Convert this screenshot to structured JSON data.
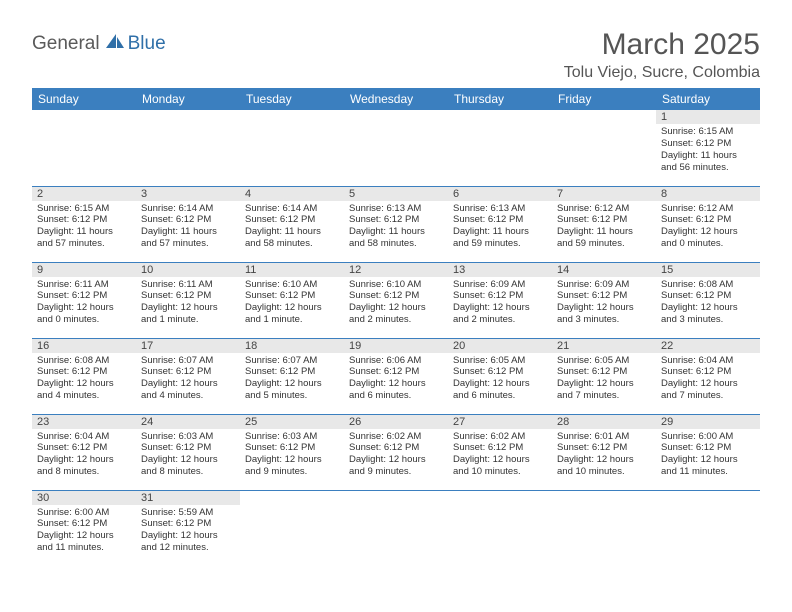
{
  "logo": {
    "general": "General",
    "blue": "Blue"
  },
  "title": "March 2025",
  "location": "Tolu Viejo, Sucre, Colombia",
  "header_bg": "#3b7fbf",
  "days_of_week": [
    "Sunday",
    "Monday",
    "Tuesday",
    "Wednesday",
    "Thursday",
    "Friday",
    "Saturday"
  ],
  "weeks": [
    [
      {
        "n": "",
        "sunrise": "",
        "sunset": "",
        "daylight": ""
      },
      {
        "n": "",
        "sunrise": "",
        "sunset": "",
        "daylight": ""
      },
      {
        "n": "",
        "sunrise": "",
        "sunset": "",
        "daylight": ""
      },
      {
        "n": "",
        "sunrise": "",
        "sunset": "",
        "daylight": ""
      },
      {
        "n": "",
        "sunrise": "",
        "sunset": "",
        "daylight": ""
      },
      {
        "n": "",
        "sunrise": "",
        "sunset": "",
        "daylight": ""
      },
      {
        "n": "1",
        "sunrise": "Sunrise: 6:15 AM",
        "sunset": "Sunset: 6:12 PM",
        "daylight": "Daylight: 11 hours and 56 minutes."
      }
    ],
    [
      {
        "n": "2",
        "sunrise": "Sunrise: 6:15 AM",
        "sunset": "Sunset: 6:12 PM",
        "daylight": "Daylight: 11 hours and 57 minutes."
      },
      {
        "n": "3",
        "sunrise": "Sunrise: 6:14 AM",
        "sunset": "Sunset: 6:12 PM",
        "daylight": "Daylight: 11 hours and 57 minutes."
      },
      {
        "n": "4",
        "sunrise": "Sunrise: 6:14 AM",
        "sunset": "Sunset: 6:12 PM",
        "daylight": "Daylight: 11 hours and 58 minutes."
      },
      {
        "n": "5",
        "sunrise": "Sunrise: 6:13 AM",
        "sunset": "Sunset: 6:12 PM",
        "daylight": "Daylight: 11 hours and 58 minutes."
      },
      {
        "n": "6",
        "sunrise": "Sunrise: 6:13 AM",
        "sunset": "Sunset: 6:12 PM",
        "daylight": "Daylight: 11 hours and 59 minutes."
      },
      {
        "n": "7",
        "sunrise": "Sunrise: 6:12 AM",
        "sunset": "Sunset: 6:12 PM",
        "daylight": "Daylight: 11 hours and 59 minutes."
      },
      {
        "n": "8",
        "sunrise": "Sunrise: 6:12 AM",
        "sunset": "Sunset: 6:12 PM",
        "daylight": "Daylight: 12 hours and 0 minutes."
      }
    ],
    [
      {
        "n": "9",
        "sunrise": "Sunrise: 6:11 AM",
        "sunset": "Sunset: 6:12 PM",
        "daylight": "Daylight: 12 hours and 0 minutes."
      },
      {
        "n": "10",
        "sunrise": "Sunrise: 6:11 AM",
        "sunset": "Sunset: 6:12 PM",
        "daylight": "Daylight: 12 hours and 1 minute."
      },
      {
        "n": "11",
        "sunrise": "Sunrise: 6:10 AM",
        "sunset": "Sunset: 6:12 PM",
        "daylight": "Daylight: 12 hours and 1 minute."
      },
      {
        "n": "12",
        "sunrise": "Sunrise: 6:10 AM",
        "sunset": "Sunset: 6:12 PM",
        "daylight": "Daylight: 12 hours and 2 minutes."
      },
      {
        "n": "13",
        "sunrise": "Sunrise: 6:09 AM",
        "sunset": "Sunset: 6:12 PM",
        "daylight": "Daylight: 12 hours and 2 minutes."
      },
      {
        "n": "14",
        "sunrise": "Sunrise: 6:09 AM",
        "sunset": "Sunset: 6:12 PM",
        "daylight": "Daylight: 12 hours and 3 minutes."
      },
      {
        "n": "15",
        "sunrise": "Sunrise: 6:08 AM",
        "sunset": "Sunset: 6:12 PM",
        "daylight": "Daylight: 12 hours and 3 minutes."
      }
    ],
    [
      {
        "n": "16",
        "sunrise": "Sunrise: 6:08 AM",
        "sunset": "Sunset: 6:12 PM",
        "daylight": "Daylight: 12 hours and 4 minutes."
      },
      {
        "n": "17",
        "sunrise": "Sunrise: 6:07 AM",
        "sunset": "Sunset: 6:12 PM",
        "daylight": "Daylight: 12 hours and 4 minutes."
      },
      {
        "n": "18",
        "sunrise": "Sunrise: 6:07 AM",
        "sunset": "Sunset: 6:12 PM",
        "daylight": "Daylight: 12 hours and 5 minutes."
      },
      {
        "n": "19",
        "sunrise": "Sunrise: 6:06 AM",
        "sunset": "Sunset: 6:12 PM",
        "daylight": "Daylight: 12 hours and 6 minutes."
      },
      {
        "n": "20",
        "sunrise": "Sunrise: 6:05 AM",
        "sunset": "Sunset: 6:12 PM",
        "daylight": "Daylight: 12 hours and 6 minutes."
      },
      {
        "n": "21",
        "sunrise": "Sunrise: 6:05 AM",
        "sunset": "Sunset: 6:12 PM",
        "daylight": "Daylight: 12 hours and 7 minutes."
      },
      {
        "n": "22",
        "sunrise": "Sunrise: 6:04 AM",
        "sunset": "Sunset: 6:12 PM",
        "daylight": "Daylight: 12 hours and 7 minutes."
      }
    ],
    [
      {
        "n": "23",
        "sunrise": "Sunrise: 6:04 AM",
        "sunset": "Sunset: 6:12 PM",
        "daylight": "Daylight: 12 hours and 8 minutes."
      },
      {
        "n": "24",
        "sunrise": "Sunrise: 6:03 AM",
        "sunset": "Sunset: 6:12 PM",
        "daylight": "Daylight: 12 hours and 8 minutes."
      },
      {
        "n": "25",
        "sunrise": "Sunrise: 6:03 AM",
        "sunset": "Sunset: 6:12 PM",
        "daylight": "Daylight: 12 hours and 9 minutes."
      },
      {
        "n": "26",
        "sunrise": "Sunrise: 6:02 AM",
        "sunset": "Sunset: 6:12 PM",
        "daylight": "Daylight: 12 hours and 9 minutes."
      },
      {
        "n": "27",
        "sunrise": "Sunrise: 6:02 AM",
        "sunset": "Sunset: 6:12 PM",
        "daylight": "Daylight: 12 hours and 10 minutes."
      },
      {
        "n": "28",
        "sunrise": "Sunrise: 6:01 AM",
        "sunset": "Sunset: 6:12 PM",
        "daylight": "Daylight: 12 hours and 10 minutes."
      },
      {
        "n": "29",
        "sunrise": "Sunrise: 6:00 AM",
        "sunset": "Sunset: 6:12 PM",
        "daylight": "Daylight: 12 hours and 11 minutes."
      }
    ],
    [
      {
        "n": "30",
        "sunrise": "Sunrise: 6:00 AM",
        "sunset": "Sunset: 6:12 PM",
        "daylight": "Daylight: 12 hours and 11 minutes."
      },
      {
        "n": "31",
        "sunrise": "Sunrise: 5:59 AM",
        "sunset": "Sunset: 6:12 PM",
        "daylight": "Daylight: 12 hours and 12 minutes."
      },
      {
        "n": "",
        "sunrise": "",
        "sunset": "",
        "daylight": ""
      },
      {
        "n": "",
        "sunrise": "",
        "sunset": "",
        "daylight": ""
      },
      {
        "n": "",
        "sunrise": "",
        "sunset": "",
        "daylight": ""
      },
      {
        "n": "",
        "sunrise": "",
        "sunset": "",
        "daylight": ""
      },
      {
        "n": "",
        "sunrise": "",
        "sunset": "",
        "daylight": ""
      }
    ]
  ]
}
